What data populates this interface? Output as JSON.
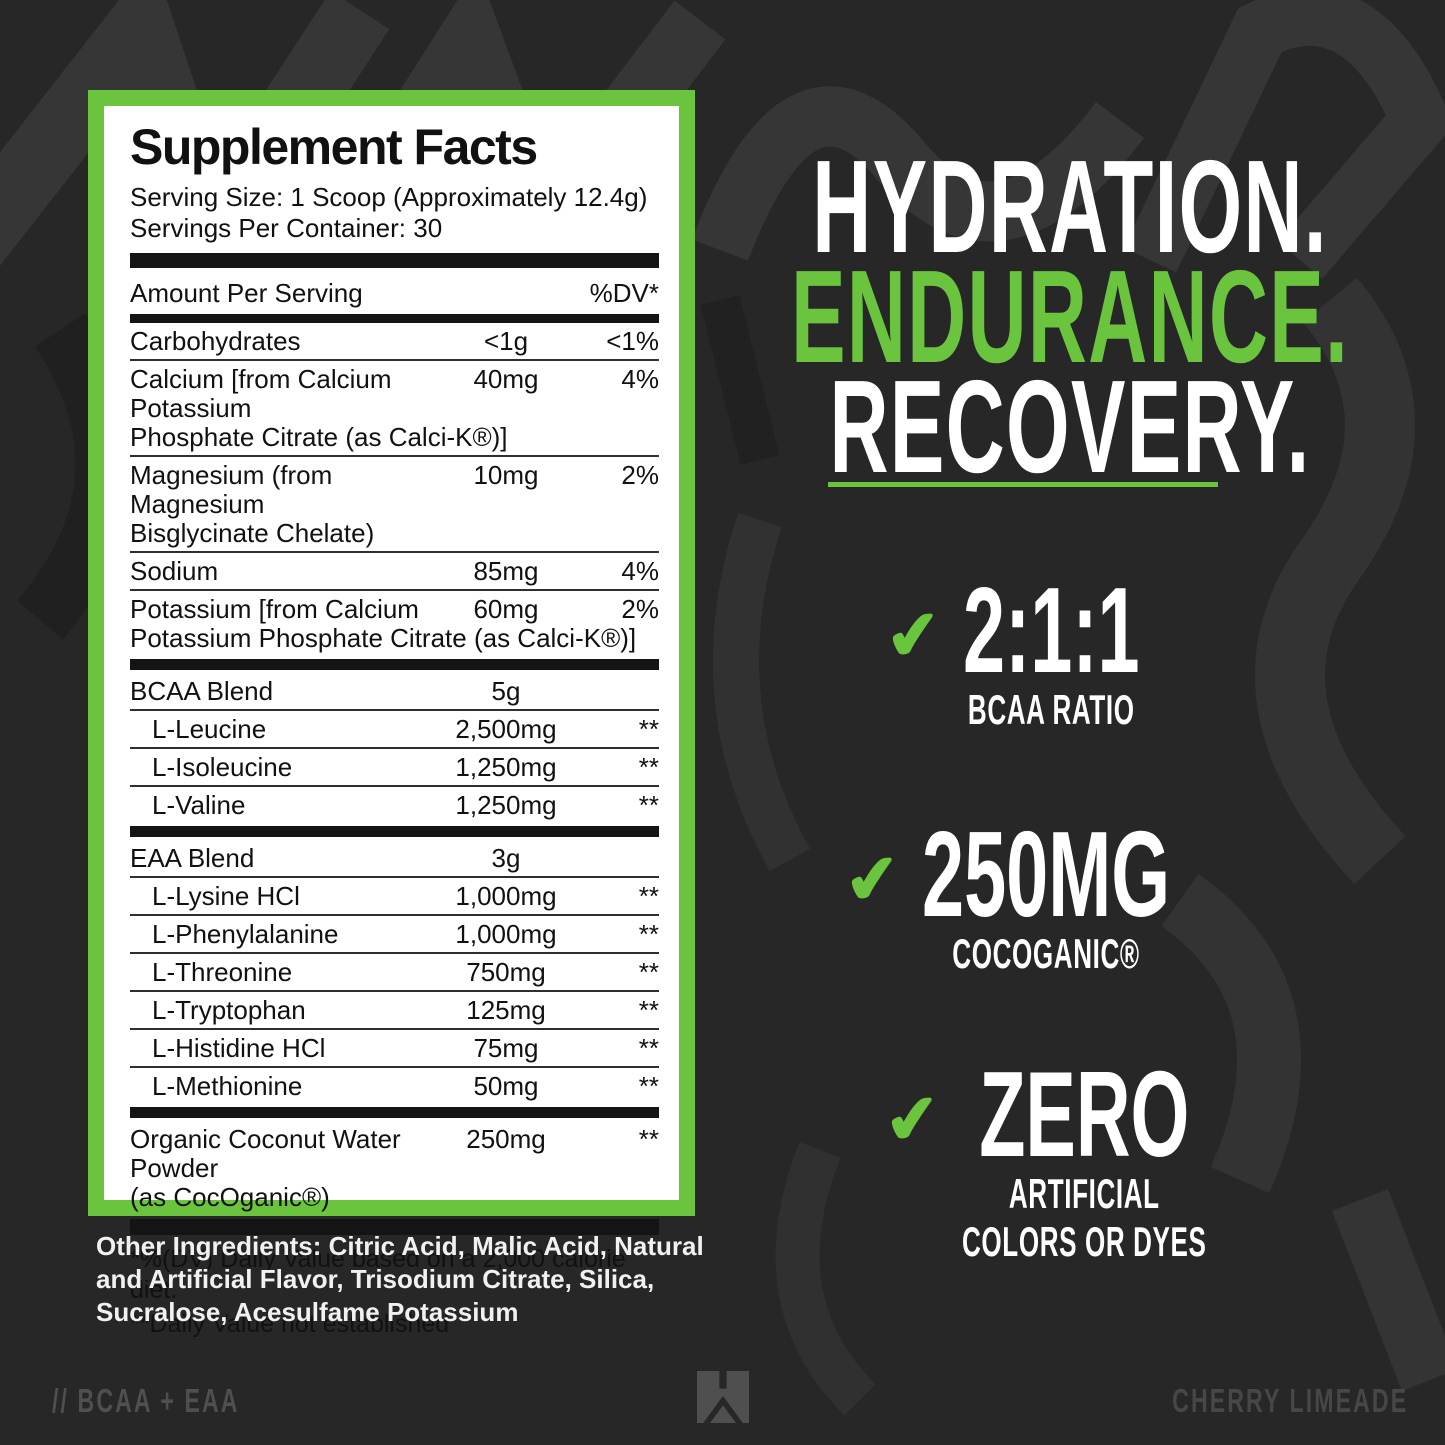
{
  "colors": {
    "green": "#6ac43e",
    "background": "#272727",
    "panel": "#ffffff",
    "ink": "#111111",
    "muted_gray": "#4f4f4f"
  },
  "icons": {
    "checkmark": "✔",
    "brand_logo": "w-mark-logo"
  },
  "facts": {
    "title": "Supplement Facts",
    "serving_size": "Serving Size: 1 Scoop (Approximately 12.4g)",
    "servings_per_container": "Servings Per Container: 30",
    "header": {
      "amount": "Amount Per Serving",
      "dv": "%DV*"
    },
    "rows": [
      {
        "line1": "Carbohydrates",
        "amount": "<1g",
        "dv": "<1%"
      },
      {
        "line1": "Calcium [from Calcium Potassium",
        "line2": "Phosphate Citrate (as Calci-K®)]",
        "amount": "40mg",
        "dv": "4%"
      },
      {
        "line1": "Magnesium (from Magnesium",
        "line2": "Bisglycinate Chelate)",
        "amount": "10mg",
        "dv": "2%"
      },
      {
        "line1": "Sodium",
        "amount": "85mg",
        "dv": "4%"
      },
      {
        "line1": "Potassium [from Calcium",
        "line2": "Potassium Phosphate Citrate (as Calci-K®)]",
        "amount": "60mg",
        "dv": "2%"
      },
      {
        "line1": "BCAA Blend",
        "amount": "5g",
        "dv": "",
        "bar": true
      },
      {
        "line1": "L-Leucine",
        "amount": "2,500mg",
        "dv": "**",
        "indent": true
      },
      {
        "line1": "L-Isoleucine",
        "amount": "1,250mg",
        "dv": "**",
        "indent": true
      },
      {
        "line1": "L-Valine",
        "amount": "1,250mg",
        "dv": "**",
        "indent": true
      },
      {
        "line1": "EAA Blend",
        "amount": "3g",
        "dv": "",
        "bar": true
      },
      {
        "line1": "L-Lysine HCl",
        "amount": "1,000mg",
        "dv": "**",
        "indent": true
      },
      {
        "line1": "L-Phenylalanine",
        "amount": "1,000mg",
        "dv": "**",
        "indent": true
      },
      {
        "line1": "L-Threonine",
        "amount": "750mg",
        "dv": "**",
        "indent": true
      },
      {
        "line1": "L-Tryptophan",
        "amount": "125mg",
        "dv": "**",
        "indent": true
      },
      {
        "line1": "L-Histidine HCl",
        "amount": "75mg",
        "dv": "**",
        "indent": true
      },
      {
        "line1": "L-Methionine",
        "amount": "50mg",
        "dv": "**",
        "indent": true
      },
      {
        "line1": "Organic Coconut Water Powder",
        "line2": "(as CocOganic®)",
        "amount": "250mg",
        "dv": "**",
        "bar": true
      }
    ],
    "footnotes": [
      "*%(DV) Daily Value based on a 2,000 calorie diet.",
      "**Daily Value not established"
    ]
  },
  "other_ingredients": "Other Ingredients: Citric Acid, Malic Acid, Natural and Artificial Flavor, Trisodium Citrate, Silica, Sucralose, Acesulfame Potassium",
  "headline": {
    "lines": [
      {
        "text": "HYDRATION.",
        "accent": false
      },
      {
        "text": "ENDURANCE.",
        "accent": true
      },
      {
        "text": "RECOVERY.",
        "accent": false
      }
    ]
  },
  "benefits": [
    {
      "big": "2:1:1",
      "sub_lines": [
        "BCAA RATIO"
      ]
    },
    {
      "big": "250MG",
      "sub_lines": [
        "COCOGANIC®"
      ]
    },
    {
      "big": "ZERO",
      "sub_lines": [
        "ARTIFICIAL",
        "COLORS OR DYES"
      ]
    }
  ],
  "footer": {
    "left": "// BCAA + EAA",
    "right": "CHERRY LIMEADE"
  }
}
